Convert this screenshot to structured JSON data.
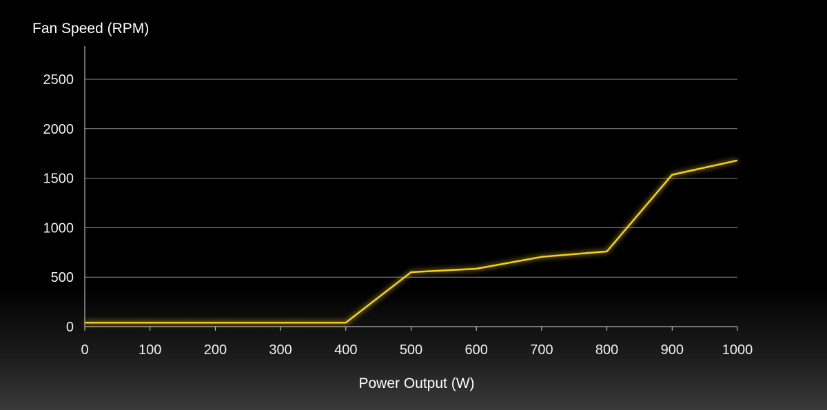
{
  "chart_data": {
    "type": "line",
    "title": "",
    "xlabel": "Power Output (W)",
    "ylabel": "Fan Speed (RPM)",
    "xlim": [
      0,
      1000
    ],
    "ylim": [
      0,
      2500
    ],
    "x_ticks": [
      "0",
      "100",
      "200",
      "300",
      "400",
      "500",
      "600",
      "700",
      "800",
      "900",
      "1000"
    ],
    "y_ticks": [
      "0",
      "500",
      "1000",
      "1500",
      "2000",
      "2500"
    ],
    "grid": "horizontal",
    "legend": "none",
    "series": [
      {
        "color": "#f5d020",
        "x": [
          0,
          400,
          500,
          600,
          700,
          800,
          900,
          1000
        ],
        "y": [
          40,
          40,
          550,
          585,
          705,
          760,
          1535,
          1680
        ]
      }
    ]
  },
  "colors": {
    "background": "#000000",
    "gridline": "#8a8a8a",
    "axis": "#d8d8d8",
    "text": "#f2f2f2",
    "line": "#f5d020"
  }
}
